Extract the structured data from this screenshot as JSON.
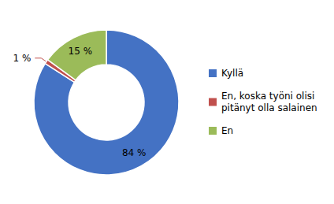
{
  "chart_data": {
    "type": "pie",
    "categories": [
      "Kyllä",
      "En, koska työni olisi\npitänyt olla salainen",
      "En"
    ],
    "values": [
      84,
      1,
      15
    ],
    "value_labels": [
      "84 %",
      "1 %",
      "15 %"
    ],
    "colors": [
      "#4472C4",
      "#C0504D",
      "#9BBB59"
    ],
    "data_labels": true,
    "legend": "right"
  }
}
